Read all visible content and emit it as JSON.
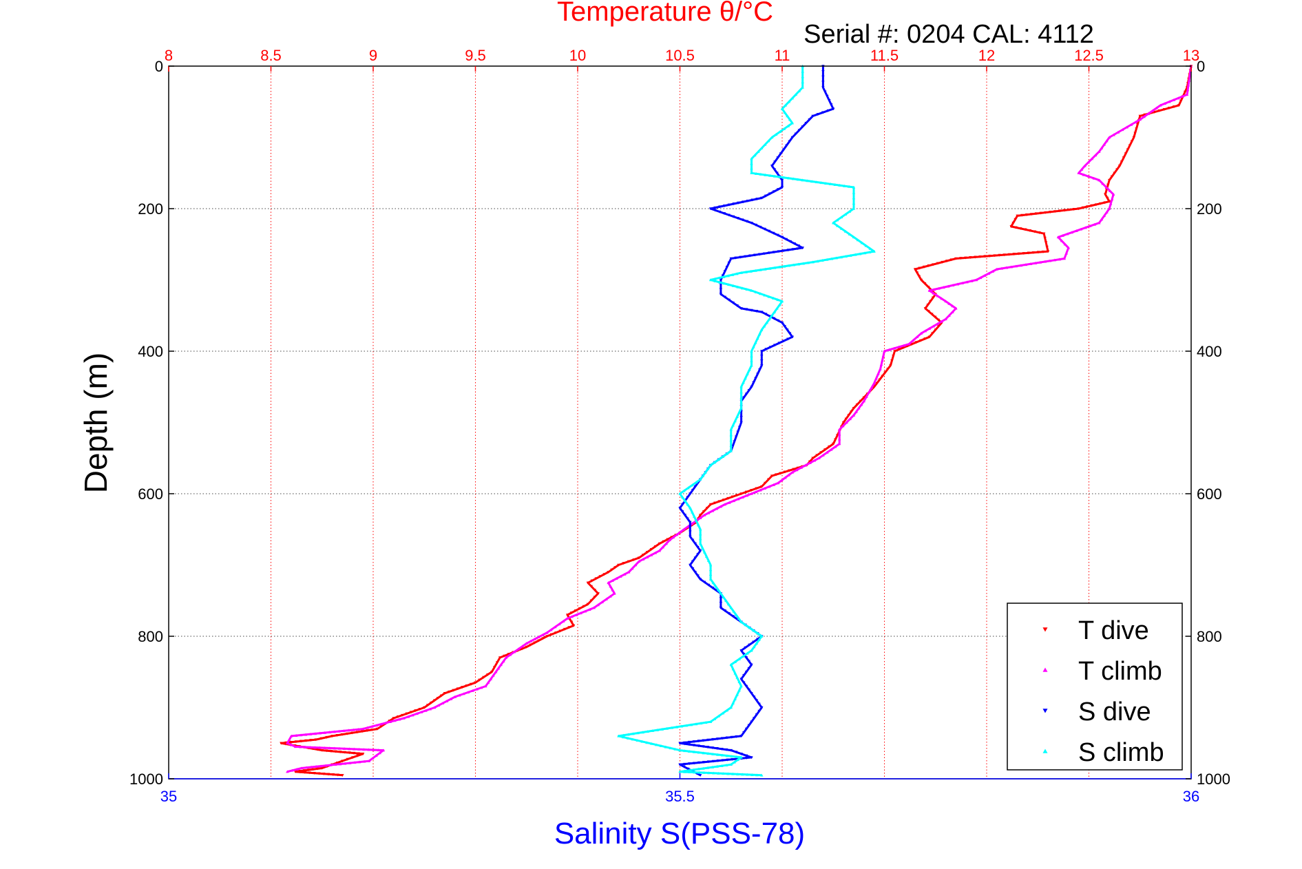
{
  "chart_data": {
    "type": "scatter",
    "title": "Temperature θ/°C",
    "subtitle": "Serial #: 0204  CAL: 4112",
    "xlabel_top": "Temperature θ/°C",
    "xlabel_bottom": "Salinity S(PSS-78)",
    "ylabel": "Depth (m)",
    "x_top_lim": [
      8,
      13
    ],
    "x_top_ticks": [
      8,
      8.5,
      9,
      9.5,
      10,
      10.5,
      11,
      11.5,
      12,
      12.5,
      13
    ],
    "x_bottom_lim": [
      35,
      36
    ],
    "x_bottom_ticks": [
      35,
      35.5,
      36
    ],
    "ylim": [
      0,
      1000
    ],
    "y_ticks": [
      0,
      200,
      400,
      600,
      800,
      1000
    ],
    "y_reversed": true,
    "grid": true,
    "legend_position": "bottom-right",
    "series": [
      {
        "name": "T dive",
        "axis": "temperature",
        "color": "#ff0000",
        "marker": "triangle-down",
        "points": [
          [
            13,
            0
          ],
          [
            12.98,
            30
          ],
          [
            12.94,
            55
          ],
          [
            12.75,
            70
          ],
          [
            12.72,
            100
          ],
          [
            12.65,
            140
          ],
          [
            12.6,
            160
          ],
          [
            12.58,
            180
          ],
          [
            12.6,
            190
          ],
          [
            12.45,
            200
          ],
          [
            12.15,
            210
          ],
          [
            12.12,
            225
          ],
          [
            12.28,
            235
          ],
          [
            12.3,
            260
          ],
          [
            11.85,
            270
          ],
          [
            11.65,
            285
          ],
          [
            11.68,
            300
          ],
          [
            11.75,
            320
          ],
          [
            11.7,
            340
          ],
          [
            11.78,
            360
          ],
          [
            11.72,
            380
          ],
          [
            11.55,
            400
          ],
          [
            11.53,
            420
          ],
          [
            11.45,
            450
          ],
          [
            11.35,
            480
          ],
          [
            11.3,
            500
          ],
          [
            11.25,
            530
          ],
          [
            11.15,
            550
          ],
          [
            11.12,
            560
          ],
          [
            10.95,
            575
          ],
          [
            10.9,
            590
          ],
          [
            10.8,
            600
          ],
          [
            10.65,
            615
          ],
          [
            10.6,
            630
          ],
          [
            10.58,
            640
          ],
          [
            10.5,
            655
          ],
          [
            10.4,
            670
          ],
          [
            10.3,
            690
          ],
          [
            10.2,
            700
          ],
          [
            10.15,
            710
          ],
          [
            10.05,
            725
          ],
          [
            10.1,
            740
          ],
          [
            10.05,
            755
          ],
          [
            9.95,
            770
          ],
          [
            9.98,
            785
          ],
          [
            9.85,
            800
          ],
          [
            9.75,
            815
          ],
          [
            9.62,
            830
          ],
          [
            9.58,
            850
          ],
          [
            9.5,
            865
          ],
          [
            9.35,
            880
          ],
          [
            9.3,
            890
          ],
          [
            9.25,
            900
          ],
          [
            9.1,
            915
          ],
          [
            9.02,
            930
          ],
          [
            8.8,
            940
          ],
          [
            8.72,
            945
          ],
          [
            8.55,
            950
          ],
          [
            8.75,
            960
          ],
          [
            8.95,
            965
          ],
          [
            8.85,
            975
          ],
          [
            8.75,
            985
          ],
          [
            8.62,
            990
          ],
          [
            8.85,
            995
          ]
        ]
      },
      {
        "name": "T climb",
        "axis": "temperature",
        "color": "#ff00ff",
        "marker": "triangle-up",
        "points": [
          [
            13,
            0
          ],
          [
            12.98,
            40
          ],
          [
            12.85,
            55
          ],
          [
            12.75,
            75
          ],
          [
            12.6,
            100
          ],
          [
            12.55,
            120
          ],
          [
            12.48,
            140
          ],
          [
            12.45,
            150
          ],
          [
            12.55,
            160
          ],
          [
            12.62,
            180
          ],
          [
            12.6,
            200
          ],
          [
            12.55,
            220
          ],
          [
            12.35,
            240
          ],
          [
            12.4,
            255
          ],
          [
            12.38,
            270
          ],
          [
            12.05,
            285
          ],
          [
            11.95,
            300
          ],
          [
            11.72,
            315
          ],
          [
            11.8,
            330
          ],
          [
            11.85,
            340
          ],
          [
            11.8,
            355
          ],
          [
            11.68,
            375
          ],
          [
            11.62,
            390
          ],
          [
            11.5,
            400
          ],
          [
            11.48,
            425
          ],
          [
            11.45,
            445
          ],
          [
            11.4,
            470
          ],
          [
            11.35,
            490
          ],
          [
            11.28,
            510
          ],
          [
            11.28,
            530
          ],
          [
            11.18,
            550
          ],
          [
            11.05,
            570
          ],
          [
            10.98,
            585
          ],
          [
            10.85,
            600
          ],
          [
            10.72,
            615
          ],
          [
            10.62,
            630
          ],
          [
            10.52,
            650
          ],
          [
            10.45,
            665
          ],
          [
            10.4,
            680
          ],
          [
            10.3,
            695
          ],
          [
            10.25,
            710
          ],
          [
            10.15,
            725
          ],
          [
            10.18,
            740
          ],
          [
            10.08,
            760
          ],
          [
            9.95,
            775
          ],
          [
            9.85,
            795
          ],
          [
            9.75,
            810
          ],
          [
            9.65,
            830
          ],
          [
            9.6,
            850
          ],
          [
            9.55,
            870
          ],
          [
            9.4,
            885
          ],
          [
            9.3,
            900
          ],
          [
            9.15,
            915
          ],
          [
            8.95,
            930
          ],
          [
            8.6,
            940
          ],
          [
            8.58,
            950
          ],
          [
            8.62,
            955
          ],
          [
            9.05,
            960
          ],
          [
            8.98,
            975
          ],
          [
            8.65,
            985
          ],
          [
            8.58,
            990
          ]
        ]
      },
      {
        "name": "S dive",
        "axis": "salinity",
        "color": "#0000ff",
        "marker": "triangle-down",
        "points": [
          [
            35.64,
            0
          ],
          [
            35.64,
            30
          ],
          [
            35.65,
            60
          ],
          [
            35.63,
            70
          ],
          [
            35.61,
            100
          ],
          [
            35.59,
            140
          ],
          [
            35.6,
            160
          ],
          [
            35.6,
            170
          ],
          [
            35.58,
            185
          ],
          [
            35.53,
            200
          ],
          [
            35.57,
            220
          ],
          [
            35.6,
            240
          ],
          [
            35.62,
            255
          ],
          [
            35.55,
            270
          ],
          [
            35.54,
            300
          ],
          [
            35.54,
            320
          ],
          [
            35.56,
            340
          ],
          [
            35.58,
            345
          ],
          [
            35.6,
            360
          ],
          [
            35.61,
            380
          ],
          [
            35.58,
            400
          ],
          [
            35.58,
            420
          ],
          [
            35.57,
            450
          ],
          [
            35.56,
            470
          ],
          [
            35.56,
            500
          ],
          [
            35.55,
            540
          ],
          [
            35.53,
            560
          ],
          [
            35.52,
            580
          ],
          [
            35.51,
            600
          ],
          [
            35.5,
            620
          ],
          [
            35.51,
            640
          ],
          [
            35.51,
            660
          ],
          [
            35.52,
            680
          ],
          [
            35.51,
            700
          ],
          [
            35.52,
            720
          ],
          [
            35.54,
            740
          ],
          [
            35.54,
            760
          ],
          [
            35.56,
            780
          ],
          [
            35.58,
            800
          ],
          [
            35.56,
            820
          ],
          [
            35.57,
            840
          ],
          [
            35.56,
            860
          ],
          [
            35.57,
            880
          ],
          [
            35.58,
            900
          ],
          [
            35.57,
            920
          ],
          [
            35.56,
            940
          ],
          [
            35.5,
            950
          ],
          [
            35.55,
            960
          ],
          [
            35.57,
            970
          ],
          [
            35.5,
            980
          ],
          [
            35.52,
            995
          ]
        ]
      },
      {
        "name": "S climb",
        "axis": "salinity",
        "color": "#00ffff",
        "marker": "triangle-up",
        "points": [
          [
            35.62,
            0
          ],
          [
            35.62,
            30
          ],
          [
            35.6,
            60
          ],
          [
            35.61,
            80
          ],
          [
            35.59,
            100
          ],
          [
            35.57,
            130
          ],
          [
            35.57,
            150
          ],
          [
            35.62,
            160
          ],
          [
            35.67,
            170
          ],
          [
            35.67,
            200
          ],
          [
            35.65,
            220
          ],
          [
            35.67,
            240
          ],
          [
            35.69,
            260
          ],
          [
            35.63,
            275
          ],
          [
            35.56,
            290
          ],
          [
            35.53,
            300
          ],
          [
            35.57,
            315
          ],
          [
            35.6,
            330
          ],
          [
            35.59,
            350
          ],
          [
            35.58,
            370
          ],
          [
            35.57,
            400
          ],
          [
            35.57,
            420
          ],
          [
            35.56,
            450
          ],
          [
            35.56,
            480
          ],
          [
            35.55,
            510
          ],
          [
            35.55,
            540
          ],
          [
            35.53,
            560
          ],
          [
            35.52,
            580
          ],
          [
            35.5,
            600
          ],
          [
            35.51,
            620
          ],
          [
            35.52,
            650
          ],
          [
            35.52,
            670
          ],
          [
            35.53,
            700
          ],
          [
            35.53,
            720
          ],
          [
            35.54,
            740
          ],
          [
            35.55,
            760
          ],
          [
            35.56,
            780
          ],
          [
            35.58,
            800
          ],
          [
            35.57,
            820
          ],
          [
            35.55,
            840
          ],
          [
            35.56,
            870
          ],
          [
            35.55,
            900
          ],
          [
            35.53,
            920
          ],
          [
            35.44,
            940
          ],
          [
            35.5,
            960
          ],
          [
            35.56,
            970
          ],
          [
            35.55,
            980
          ],
          [
            35.5,
            990
          ],
          [
            35.58,
            995
          ]
        ]
      }
    ]
  }
}
